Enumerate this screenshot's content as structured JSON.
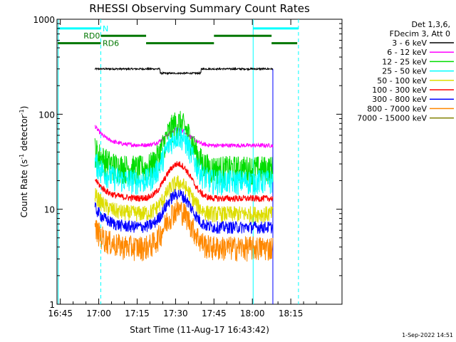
{
  "chart_data": {
    "type": "line",
    "title": "RHESSI Observing Summary Count Rates",
    "xlabel": "Start Time (11-Aug-17 16:43:42)",
    "ylabel_main": "Count Rate (s",
    "ylabel_sup1": "-1",
    "ylabel_mid": " detector",
    "ylabel_sup2": "-1",
    "ylabel_end": ")",
    "yscale": "log",
    "ylim": [
      1,
      1000
    ],
    "xlim_minutes": [
      -16.3,
      95
    ],
    "x_ticks": [
      "16:45",
      "17:00",
      "17:15",
      "17:30",
      "17:45",
      "18:00",
      "18:15"
    ],
    "x_tick_minutes": [
      -15,
      0,
      15,
      30,
      45,
      60,
      75
    ],
    "y_ticks": [
      "1",
      "10",
      "100",
      "1000"
    ],
    "y_tick_values": [
      1,
      10,
      100,
      1000
    ],
    "legend_header": [
      "Det 1,3,6,",
      "FDecim 3, Att 0"
    ],
    "series": [
      {
        "name": "3 - 6 keV",
        "color": "#000000",
        "base": 300,
        "peak": 0,
        "noise": 0.02,
        "dip": 0.9
      },
      {
        "name": "6 - 12 keV",
        "color": "#ff00ff",
        "base": 47,
        "peak": 22,
        "noise": 0.05
      },
      {
        "name": "12 - 25 keV",
        "color": "#00dd00",
        "base": 27,
        "peak": 55,
        "noise": 0.35
      },
      {
        "name": "25 - 50 keV",
        "color": "#00ffff",
        "base": 20,
        "peak": 40,
        "noise": 0.3
      },
      {
        "name": "50 - 100 keV",
        "color": "#dddd00",
        "base": 9,
        "peak": 10,
        "noise": 0.2
      },
      {
        "name": "100 - 300 keV",
        "color": "#ff0000",
        "base": 13,
        "peak": 17,
        "noise": 0.08
      },
      {
        "name": "300 - 800 keV",
        "color": "#0000ff",
        "base": 6.5,
        "peak": 8,
        "noise": 0.15
      },
      {
        "name": "800 - 7000 keV",
        "color": "#ff8800",
        "base": 4,
        "peak": 6,
        "noise": 0.3
      },
      {
        "name": "7000 - 15000 keV",
        "color": "#808000",
        "base": 0,
        "peak": 0,
        "noise": 0
      }
    ],
    "data_window_minutes": [
      -1.5,
      68
    ],
    "flare_peak_minute": 31,
    "flare_width_minutes": 6,
    "state_bars": {
      "N": {
        "label": "N",
        "color": "#00ffff",
        "level": 800,
        "spans_minutes": [
          [
            -16,
            0.8
          ],
          [
            60.3,
            78
          ]
        ]
      },
      "RD0": {
        "label": "RD0",
        "color": "#007700",
        "level": 670,
        "spans_minutes": [
          [
            0.8,
            18.5
          ],
          [
            45,
            67.5
          ]
        ]
      },
      "RD6": {
        "label": "RD6",
        "color": "#007700",
        "level": 560,
        "spans_minutes": [
          [
            -16,
            0.8
          ],
          [
            18.5,
            45
          ],
          [
            67.5,
            77.5
          ]
        ]
      }
    },
    "markers_minutes": {
      "solid_cyan": [
        -15.8,
        60.3
      ],
      "dashed_cyan": [
        0.8,
        78
      ],
      "solid_blue": [
        68
      ]
    },
    "timestamp": "1-Sep-2022 14:51"
  }
}
